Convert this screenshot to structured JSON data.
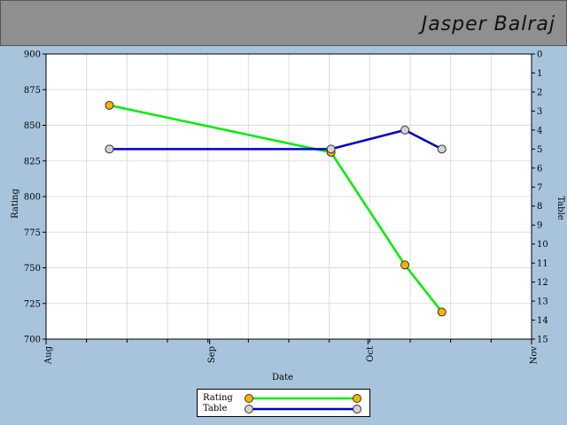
{
  "header": {
    "player_name": "Jasper Balraj"
  },
  "colors": {
    "page_background": "#a8c4dc",
    "header_background": "#8f8f8f",
    "rating_line": "#00ee00",
    "rating_marker": "#ffb000",
    "table_line": "#0000cc",
    "table_marker": "#d3d3d3",
    "grid": "#dddddd"
  },
  "chart_data": {
    "type": "line",
    "xlabel": "Date",
    "x_ticks": [
      "Aug",
      "Sep",
      "Oct",
      "Nov"
    ],
    "x_tick_dates": [
      "2024-08-01",
      "2024-09-01",
      "2024-10-01",
      "2024-11-01"
    ],
    "xlim": [
      "2024-08-01",
      "2024-11-01"
    ],
    "y_left": {
      "label": "Rating",
      "lim": [
        700,
        900
      ],
      "ticks": [
        700,
        725,
        750,
        775,
        800,
        825,
        850,
        875,
        900
      ]
    },
    "y_right": {
      "label": "Table",
      "lim": [
        15,
        0
      ],
      "inverted": true,
      "ticks": [
        0,
        1,
        2,
        3,
        4,
        5,
        6,
        7,
        8,
        9,
        10,
        11,
        12,
        13,
        14,
        15
      ]
    },
    "grid": true,
    "legend_position": "bottom-center",
    "series": [
      {
        "name": "Rating",
        "axis": "left",
        "points": [
          {
            "x": "2024-08-13",
            "y": 864
          },
          {
            "x": "2024-09-24",
            "y": 831
          },
          {
            "x": "2024-10-08",
            "y": 752
          },
          {
            "x": "2024-10-15",
            "y": 719
          }
        ]
      },
      {
        "name": "Table",
        "axis": "right",
        "points": [
          {
            "x": "2024-08-13",
            "y": 5
          },
          {
            "x": "2024-09-24",
            "y": 5
          },
          {
            "x": "2024-10-08",
            "y": 4
          },
          {
            "x": "2024-10-15",
            "y": 5
          }
        ]
      }
    ]
  }
}
